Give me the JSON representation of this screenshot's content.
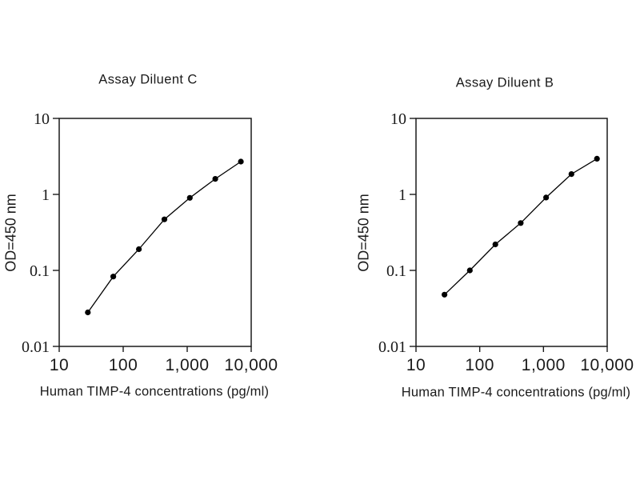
{
  "page": {
    "background_color": "#ffffff",
    "foreground_color": "#1a1a1a"
  },
  "chart_data": [
    {
      "type": "line",
      "title": "Assay Diluent C",
      "xlabel": "Human TIMP-4 concentrations (pg/ml)",
      "ylabel": "OD=450 nm",
      "x_scale": "log",
      "y_scale": "log",
      "xlim": [
        10,
        10000
      ],
      "ylim": [
        0.01,
        10
      ],
      "x_ticks": {
        "values": [
          10,
          100,
          1000,
          10000
        ],
        "labels": [
          "10",
          "100",
          "1,000",
          "10,000"
        ]
      },
      "y_ticks": {
        "values": [
          10,
          1,
          0.1,
          0.01
        ],
        "labels": [
          "10",
          "1",
          "0.1",
          "0.01"
        ]
      },
      "grid": false,
      "legend": false,
      "marker": "filled-circle",
      "series_color": "#000000",
      "x": [
        28,
        70,
        176,
        440,
        1100,
        2750,
        6900
      ],
      "y": [
        0.028,
        0.083,
        0.19,
        0.47,
        0.9,
        1.6,
        2.7
      ]
    },
    {
      "type": "line",
      "title": "Assay Diluent B",
      "xlabel": "Human TIMP-4 concentrations (pg/ml)",
      "ylabel": "OD=450 nm",
      "x_scale": "log",
      "y_scale": "log",
      "xlim": [
        10,
        10000
      ],
      "ylim": [
        0.01,
        10
      ],
      "x_ticks": {
        "values": [
          10,
          100,
          1000,
          10000
        ],
        "labels": [
          "10",
          "100",
          "1,000",
          "10,000"
        ]
      },
      "y_ticks": {
        "values": [
          10,
          1,
          0.1,
          0.01
        ],
        "labels": [
          "10",
          "1",
          "0.1",
          "0.01"
        ]
      },
      "grid": false,
      "legend": false,
      "marker": "filled-circle",
      "series_color": "#000000",
      "x": [
        28,
        70,
        176,
        440,
        1100,
        2750,
        6900
      ],
      "y": [
        0.048,
        0.1,
        0.22,
        0.42,
        0.91,
        1.85,
        2.95
      ]
    }
  ]
}
